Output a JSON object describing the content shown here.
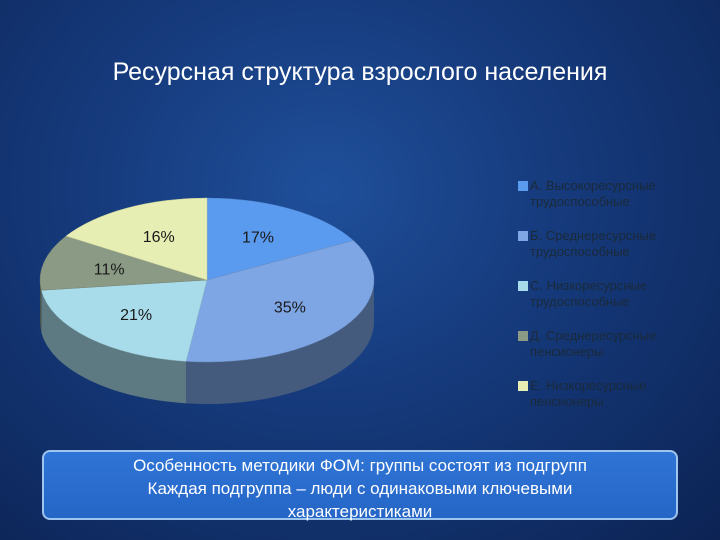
{
  "title": "Ресурсная структура взрослого населения",
  "colors": {
    "A": "#5b9bef",
    "B": "#7ea6e4",
    "C": "#a9dcea",
    "D": "#8a9a84",
    "E": "#e6eeb4"
  },
  "chart_data": {
    "type": "pie",
    "labels": [
      "А. Высокоресурсные трудоспособные",
      "Б. Среднересурсные трудоспособные",
      "С. Низкоресурсные трудоспособные",
      "Д. Среднересурсные пенсионеры",
      "Е. Низкоресурсные пенсионеры"
    ],
    "values": [
      17,
      35,
      21,
      11,
      16
    ],
    "value_labels": [
      "17%",
      "35%",
      "21%",
      "11%",
      "16%"
    ],
    "legend": "right",
    "style": "3d"
  },
  "note": {
    "line1": "Особенность методики ФОМ: группы состоят из подгрупп",
    "line2": "Каждая подгруппа – люди с одинаковыми ключевыми",
    "line3": "характеристиками"
  }
}
